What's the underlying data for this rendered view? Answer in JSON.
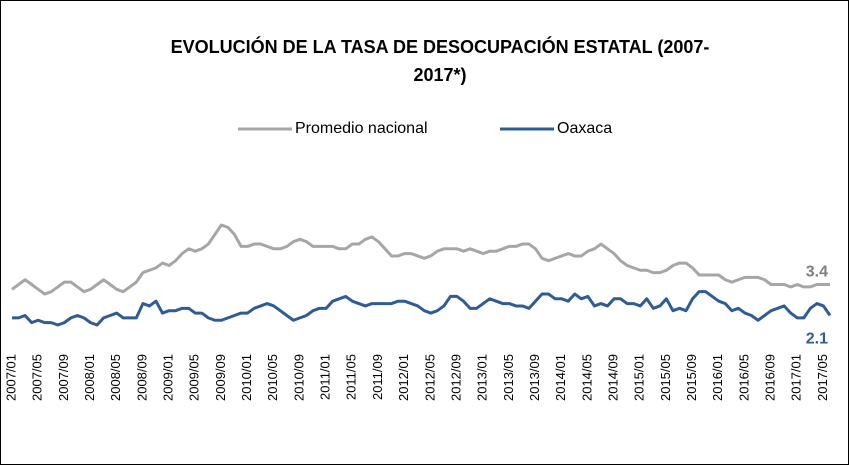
{
  "chart_data": {
    "type": "line",
    "title": [
      "EVOLUCIÓN DE LA TASA DE DESOCUPACIÓN ESTATAL (2007-",
      "2017*)"
    ],
    "categories": [
      "2007/01",
      null,
      null,
      null,
      "2007/05",
      null,
      null,
      null,
      "2007/09",
      null,
      null,
      null,
      "2008/01",
      null,
      null,
      null,
      "2008/05",
      null,
      null,
      null,
      "2008/09",
      null,
      null,
      null,
      "2009/01",
      null,
      null,
      null,
      "2009/05",
      null,
      null,
      null,
      "2009/09",
      null,
      null,
      null,
      "2010/01",
      null,
      null,
      null,
      "2010/05",
      null,
      null,
      null,
      "2010/09",
      null,
      null,
      null,
      "2011/01",
      null,
      null,
      null,
      "2011/05",
      null,
      null,
      null,
      "2011/09",
      null,
      null,
      null,
      "2012/01",
      null,
      null,
      null,
      "2012/05",
      null,
      null,
      null,
      "2012/09",
      null,
      null,
      null,
      "2013/01",
      null,
      null,
      null,
      "2013/05",
      null,
      null,
      null,
      "2013/09",
      null,
      null,
      null,
      "2014/01",
      null,
      null,
      null,
      "2014/05",
      null,
      null,
      null,
      "2014/09",
      null,
      null,
      null,
      "2015/01",
      null,
      null,
      null,
      "2015/05",
      null,
      null,
      null,
      "2015/09",
      null,
      null,
      null,
      "2016/01",
      null,
      null,
      null,
      "2016/05",
      null,
      null,
      null,
      "2016/09",
      null,
      null,
      null,
      "2017/01",
      null,
      null,
      null,
      "2017/05",
      null
    ],
    "series": [
      {
        "name": "Promedio nacional",
        "color": "#a6a6a6",
        "values": [
          3.2,
          3.4,
          3.6,
          3.4,
          3.2,
          3.0,
          3.1,
          3.3,
          3.5,
          3.5,
          3.3,
          3.1,
          3.2,
          3.4,
          3.6,
          3.4,
          3.2,
          3.1,
          3.3,
          3.5,
          3.9,
          4.0,
          4.1,
          4.3,
          4.2,
          4.4,
          4.7,
          4.9,
          4.8,
          4.9,
          5.1,
          5.5,
          5.9,
          5.8,
          5.5,
          5.0,
          5.0,
          5.1,
          5.1,
          5.0,
          4.9,
          4.9,
          5.0,
          5.2,
          5.3,
          5.2,
          5.0,
          5.0,
          5.0,
          5.0,
          4.9,
          4.9,
          5.1,
          5.1,
          5.3,
          5.4,
          5.2,
          4.9,
          4.6,
          4.6,
          4.7,
          4.7,
          4.6,
          4.5,
          4.6,
          4.8,
          4.9,
          4.9,
          4.9,
          4.8,
          4.9,
          4.8,
          4.7,
          4.8,
          4.8,
          4.9,
          5.0,
          5.0,
          5.1,
          5.1,
          4.9,
          4.5,
          4.4,
          4.5,
          4.6,
          4.7,
          4.6,
          4.6,
          4.8,
          4.9,
          5.1,
          4.9,
          4.7,
          4.4,
          4.2,
          4.1,
          4.0,
          4.0,
          3.9,
          3.9,
          4.0,
          4.2,
          4.3,
          4.3,
          4.1,
          3.8,
          3.8,
          3.8,
          3.8,
          3.6,
          3.5,
          3.6,
          3.7,
          3.7,
          3.7,
          3.6,
          3.4,
          3.4,
          3.4,
          3.3,
          3.4,
          3.3,
          3.3,
          3.4,
          3.4,
          3.4
        ]
      },
      {
        "name": "Oaxaca",
        "color": "#2f5c92",
        "values": [
          2.0,
          2.0,
          2.1,
          1.8,
          1.9,
          1.8,
          1.8,
          1.7,
          1.8,
          2.0,
          2.1,
          2.0,
          1.8,
          1.7,
          2.0,
          2.1,
          2.2,
          2.0,
          2.0,
          2.0,
          2.6,
          2.5,
          2.7,
          2.2,
          2.3,
          2.3,
          2.4,
          2.4,
          2.2,
          2.2,
          2.0,
          1.9,
          1.9,
          2.0,
          2.1,
          2.2,
          2.2,
          2.4,
          2.5,
          2.6,
          2.5,
          2.3,
          2.1,
          1.9,
          2.0,
          2.1,
          2.3,
          2.4,
          2.4,
          2.7,
          2.8,
          2.9,
          2.7,
          2.6,
          2.5,
          2.6,
          2.6,
          2.6,
          2.6,
          2.7,
          2.7,
          2.6,
          2.5,
          2.3,
          2.2,
          2.3,
          2.5,
          2.9,
          2.9,
          2.7,
          2.4,
          2.4,
          2.6,
          2.8,
          2.7,
          2.6,
          2.6,
          2.5,
          2.5,
          2.4,
          2.7,
          3.0,
          3.0,
          2.8,
          2.8,
          2.7,
          3.0,
          2.8,
          2.9,
          2.5,
          2.6,
          2.5,
          2.8,
          2.8,
          2.6,
          2.6,
          2.5,
          2.8,
          2.4,
          2.5,
          2.8,
          2.3,
          2.4,
          2.3,
          2.8,
          3.1,
          3.1,
          2.9,
          2.7,
          2.6,
          2.3,
          2.4,
          2.2,
          2.1,
          1.9,
          2.1,
          2.3,
          2.4,
          2.5,
          2.2,
          2.0,
          2.0,
          2.4,
          2.6,
          2.5,
          2.1
        ]
      }
    ]
  }
}
